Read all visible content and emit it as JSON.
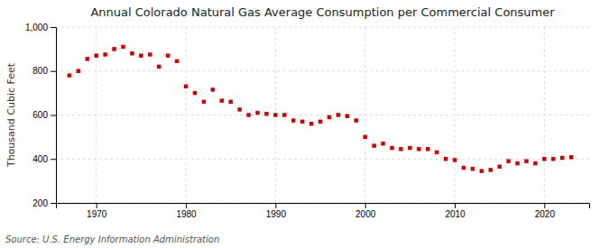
{
  "chart_data": {
    "type": "scatter",
    "title": "Annual Colorado Natural Gas Average Consumption per Commercial Consumer",
    "y_label": "Thousand Cubic Feet",
    "annotations": [
      "Source: U.S. Energy Information Administration"
    ],
    "x": [
      1967,
      1968,
      1969,
      1970,
      1971,
      1972,
      1973,
      1974,
      1975,
      1976,
      1977,
      1978,
      1979,
      1980,
      1981,
      1982,
      1983,
      1984,
      1985,
      1986,
      1987,
      1988,
      1989,
      1990,
      1991,
      1992,
      1993,
      1994,
      1995,
      1996,
      1997,
      1998,
      1999,
      2000,
      2001,
      2002,
      2003,
      2004,
      2005,
      2006,
      2007,
      2008,
      2009,
      2010,
      2011,
      2012,
      2013,
      2014,
      2015,
      2016,
      2017,
      2018,
      2019,
      2020,
      2021,
      2022,
      2023
    ],
    "values": [
      780,
      800,
      855,
      870,
      875,
      900,
      910,
      880,
      870,
      875,
      820,
      870,
      845,
      730,
      700,
      660,
      715,
      665,
      660,
      625,
      600,
      610,
      605,
      600,
      600,
      575,
      570,
      560,
      570,
      590,
      600,
      595,
      575,
      500,
      460,
      470,
      450,
      445,
      450,
      445,
      445,
      430,
      400,
      395,
      360,
      355,
      345,
      350,
      365,
      390,
      380,
      390,
      380,
      400,
      400,
      405,
      408
    ],
    "color": "#cc0000",
    "marker": "square",
    "xlim": [
      1965.5,
      2025
    ],
    "xticks": [
      1970,
      1980,
      1990,
      2000,
      2010,
      2020
    ],
    "ylim": [
      200,
      1000
    ],
    "yticks": [
      200,
      400,
      600,
      800,
      {
        "value": 1000,
        "label": "1,000"
      }
    ],
    "grid": true
  }
}
